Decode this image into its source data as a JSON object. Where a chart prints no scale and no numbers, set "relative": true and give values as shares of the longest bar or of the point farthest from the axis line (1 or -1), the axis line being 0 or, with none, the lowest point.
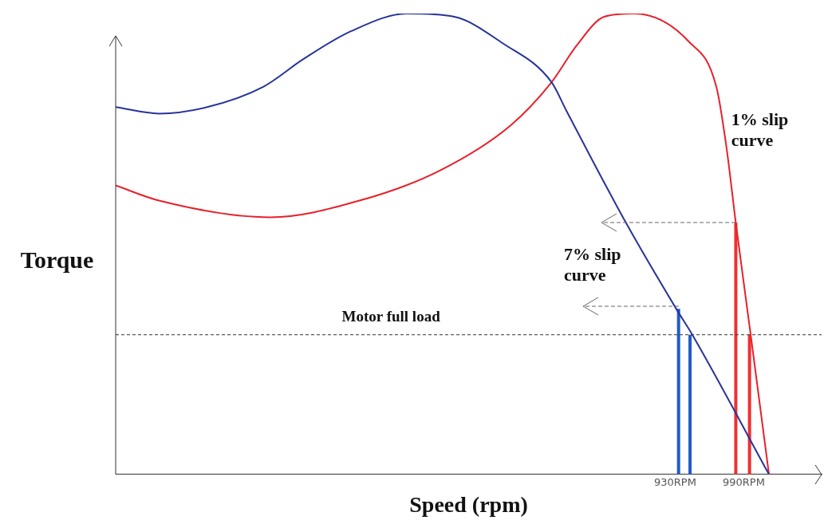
{
  "chart_data": {
    "type": "line",
    "relative": true,
    "xlabel": "Speed (rpm)",
    "ylabel": "Torque",
    "xlim": [
      441,
      1058
    ],
    "xticks": [
      {
        "value": 930,
        "label": "930RPM"
      },
      {
        "value": 990,
        "label": "990RPM"
      }
    ],
    "grid": false,
    "legend": false,
    "marker": "none",
    "tick_labels": "x",
    "series": [
      {
        "color": "#27339a",
        "x": [
          441,
          479,
          521,
          570,
          605,
          647,
          696,
          737,
          779,
          822,
          835,
          887,
          931,
          945,
          1012
        ],
        "values": [
          0.797,
          0.783,
          0.797,
          0.841,
          0.901,
          0.962,
          1.0,
          0.993,
          0.936,
          0.851,
          0.789,
          0.546,
          0.359,
          0.303,
          0
        ]
      },
      {
        "color": "#e8202a",
        "x": [
          441,
          479,
          576,
          654,
          724,
          786,
          822,
          844,
          868,
          894,
          942,
          966,
          975,
          983,
          996,
          1012
        ],
        "values": [
          0.627,
          0.594,
          0.558,
          0.594,
          0.659,
          0.757,
          0.851,
          0.931,
          0.993,
          1.0,
          0.939,
          0.841,
          0.707,
          0.546,
          0.303,
          0
        ]
      },
      {
        "color": "#1f5cc8",
        "x": [
          933,
          933
        ],
        "values": [
          0,
          0.359
        ]
      },
      {
        "color": "#1f5cc8",
        "x": [
          943,
          943
        ],
        "values": [
          0,
          0.303
        ]
      },
      {
        "color": "#f03030",
        "x": [
          983,
          983
        ],
        "values": [
          0,
          0.546
        ]
      },
      {
        "color": "#f03030",
        "x": [
          995,
          995
        ],
        "values": [
          0,
          0.303
        ]
      }
    ],
    "ref_lines": [
      {
        "axis": "y",
        "value": 0.303,
        "label": "Motor full load",
        "color": "#333333",
        "line_style": "dashed"
      }
    ],
    "annotations": [
      "1% slip curve",
      "7% slip curve"
    ]
  }
}
